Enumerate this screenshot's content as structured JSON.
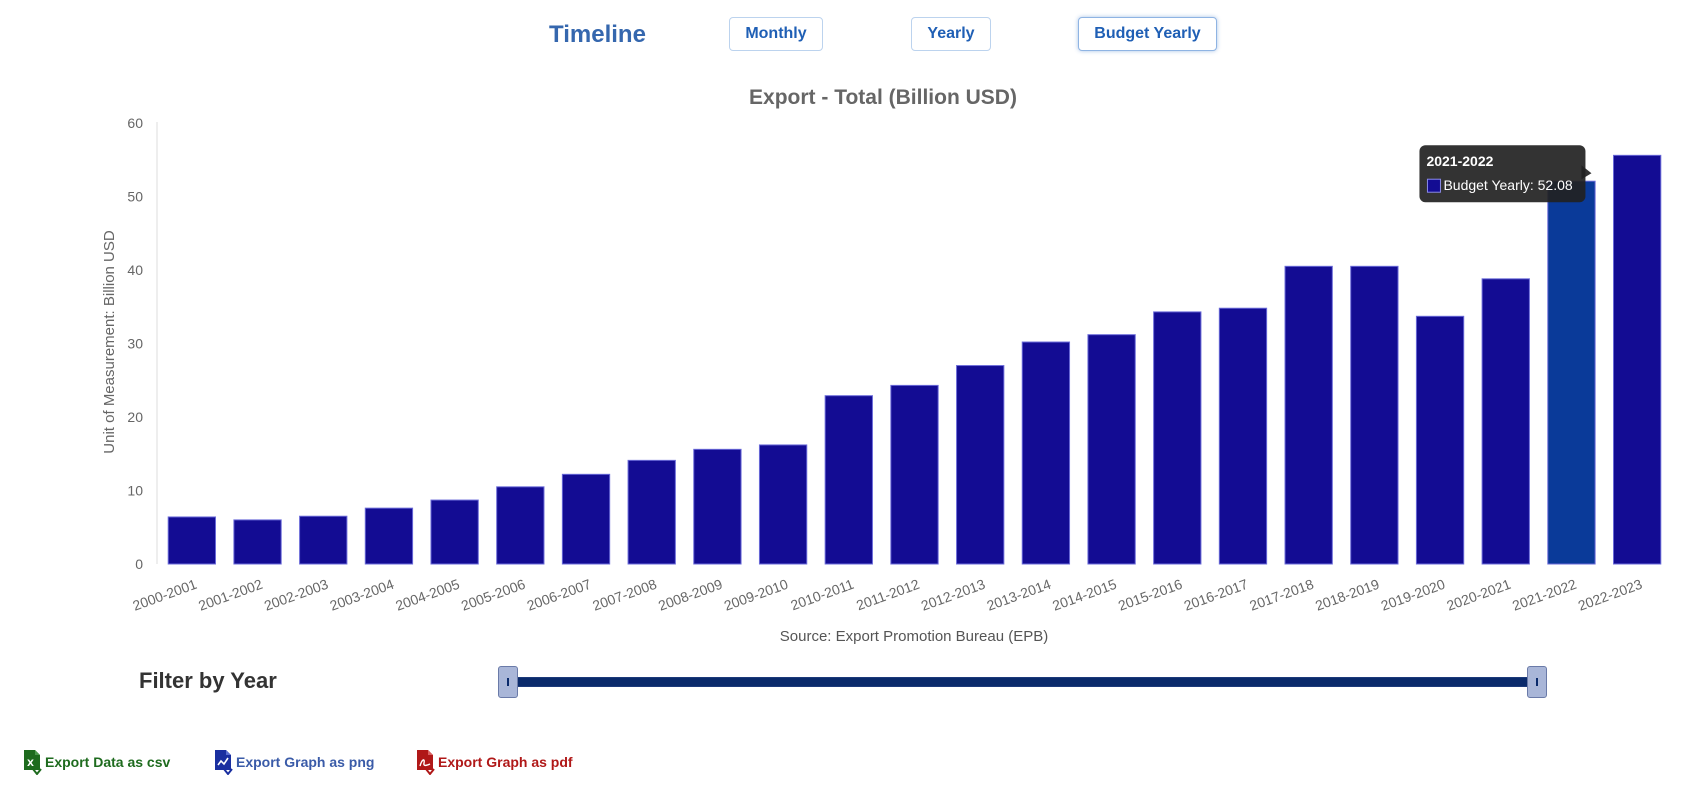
{
  "header": {
    "title": "Timeline",
    "tabs": [
      {
        "label": "Monthly",
        "active": false
      },
      {
        "label": "Yearly",
        "active": false
      },
      {
        "label": "Budget Yearly",
        "active": true
      }
    ]
  },
  "chart_data": {
    "type": "bar",
    "title": "Export - Total (Billion USD)",
    "ylabel": "Unit of Measurement: Billion USD",
    "xlabel": "Source: Export Promotion Bureau (EPB)",
    "ylim": [
      0,
      60
    ],
    "yticks": [
      0,
      10,
      20,
      30,
      40,
      50,
      60
    ],
    "grid": false,
    "bar_color": "#130c93",
    "highlight_color": "#0a3a99",
    "categories": [
      "2000-2001",
      "2001-2002",
      "2002-2003",
      "2003-2004",
      "2004-2005",
      "2005-2006",
      "2006-2007",
      "2007-2008",
      "2008-2009",
      "2009-2010",
      "2010-2011",
      "2011-2012",
      "2012-2013",
      "2013-2014",
      "2014-2015",
      "2015-2016",
      "2016-2017",
      "2017-2018",
      "2018-2019",
      "2019-2020",
      "2020-2021",
      "2021-2022",
      "2022-2023"
    ],
    "series": [
      {
        "name": "Budget Yearly",
        "values": [
          6.4,
          6.0,
          6.5,
          7.6,
          8.7,
          10.5,
          12.2,
          14.1,
          15.6,
          16.2,
          22.9,
          24.3,
          27.0,
          30.2,
          31.2,
          34.3,
          34.8,
          40.5,
          40.5,
          33.7,
          38.8,
          52.08,
          55.6
        ]
      }
    ],
    "tooltip": {
      "category": "2021-2022",
      "text": "Budget Yearly: 52.08"
    }
  },
  "filter": {
    "label": "Filter by Year",
    "range_start": "2000-2001",
    "range_end": "2022-2023"
  },
  "exports": [
    {
      "label": "Export Data as csv",
      "color": "#1e6b1e",
      "icon": "csv-file-icon"
    },
    {
      "label": "Export Graph as png",
      "color": "#3a5ba8",
      "icon": "png-file-icon"
    },
    {
      "label": "Export Graph as pdf",
      "color": "#b01818",
      "icon": "pdf-file-icon"
    }
  ]
}
